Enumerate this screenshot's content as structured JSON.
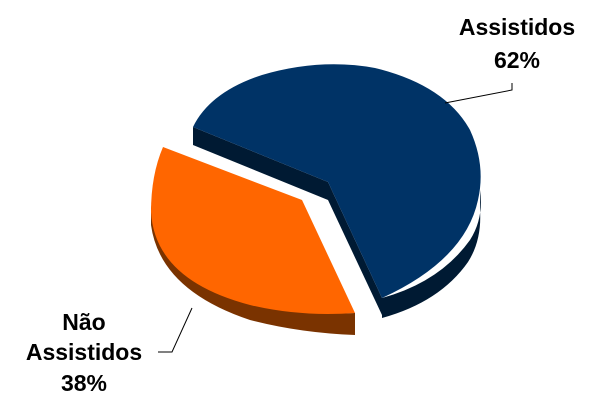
{
  "chart_data": {
    "type": "pie",
    "style": "3d-exploded",
    "slices": [
      {
        "name": "Assistidos",
        "value": 62,
        "percent_label": "62%",
        "color": "#003366",
        "side_color": "#001a33"
      },
      {
        "name": "Não",
        "name_line2": "Assistidos",
        "value": 38,
        "percent_label": "38%",
        "color": "#ff6600",
        "side_color": "#7a3300"
      }
    ],
    "title": "",
    "legend": "none"
  }
}
